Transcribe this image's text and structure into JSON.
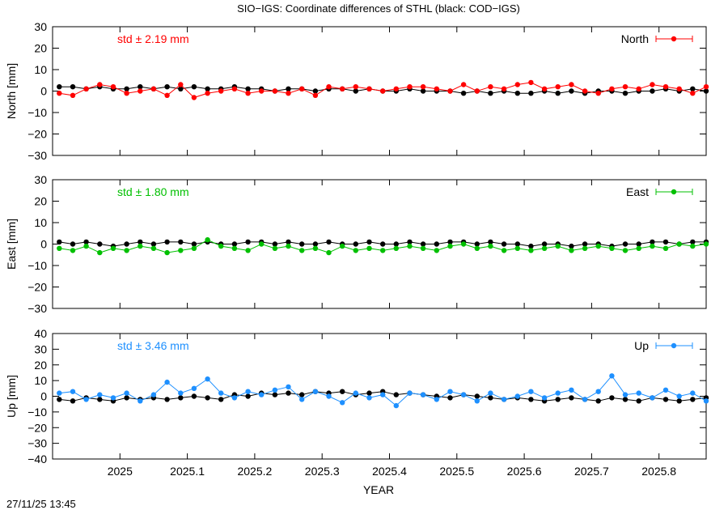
{
  "figure": {
    "title": "SIO−IGS: Coordinate differences of STHL (black: COD−IGS)",
    "xlabel": "YEAR",
    "timestamp": "27/11/25 13:45"
  },
  "chart_data": [
    {
      "type": "scatter",
      "title": "",
      "xlabel": "",
      "ylabel": "North [mm]",
      "xlim": [
        2024.9,
        2025.87
      ],
      "ylim": [
        -30,
        30
      ],
      "yticks": [
        30,
        20,
        10,
        0,
        -10,
        -20,
        -30
      ],
      "xticks": [
        2025,
        2025.1,
        2025.2,
        2025.3,
        2025.4,
        2025.5,
        2025.6,
        2025.7,
        2025.8
      ],
      "annotation": "std ± 2.19 mm",
      "legend_position": "top-right",
      "colors": {
        "primary": "#ff0000",
        "reference": "#000000"
      },
      "series": [
        {
          "name": "North",
          "role": "primary",
          "x": [
            2024.91,
            2024.93,
            2024.95,
            2024.97,
            2024.99,
            2025.01,
            2025.03,
            2025.05,
            2025.07,
            2025.09,
            2025.11,
            2025.13,
            2025.15,
            2025.17,
            2025.19,
            2025.21,
            2025.23,
            2025.25,
            2025.27,
            2025.29,
            2025.31,
            2025.33,
            2025.35,
            2025.37,
            2025.39,
            2025.41,
            2025.43,
            2025.45,
            2025.47,
            2025.49,
            2025.51,
            2025.53,
            2025.55,
            2025.57,
            2025.59,
            2025.61,
            2025.63,
            2025.65,
            2025.67,
            2025.69,
            2025.71,
            2025.73,
            2025.75,
            2025.77,
            2025.79,
            2025.81,
            2025.83,
            2025.85,
            2025.87
          ],
          "values": [
            -1,
            -2,
            1,
            3,
            2,
            -1,
            0,
            1,
            -2,
            3,
            -3,
            -1,
            0,
            1,
            -1,
            0,
            0,
            -1,
            1,
            -2,
            2,
            1,
            2,
            1,
            0,
            1,
            2,
            2,
            1,
            0,
            3,
            0,
            2,
            1,
            3,
            4,
            1,
            2,
            3,
            0,
            -1,
            1,
            2,
            1,
            3,
            2,
            1,
            -1,
            2
          ]
        },
        {
          "name": "",
          "role": "reference",
          "x": [
            2024.91,
            2024.93,
            2024.95,
            2024.97,
            2024.99,
            2025.01,
            2025.03,
            2025.05,
            2025.07,
            2025.09,
            2025.11,
            2025.13,
            2025.15,
            2025.17,
            2025.19,
            2025.21,
            2025.23,
            2025.25,
            2025.27,
            2025.29,
            2025.31,
            2025.33,
            2025.35,
            2025.37,
            2025.39,
            2025.41,
            2025.43,
            2025.45,
            2025.47,
            2025.49,
            2025.51,
            2025.53,
            2025.55,
            2025.57,
            2025.59,
            2025.61,
            2025.63,
            2025.65,
            2025.67,
            2025.69,
            2025.71,
            2025.73,
            2025.75,
            2025.77,
            2025.79,
            2025.81,
            2025.83,
            2025.85,
            2025.87
          ],
          "values": [
            2,
            2,
            1,
            2,
            1,
            1,
            2,
            1,
            2,
            1,
            2,
            1,
            1,
            2,
            1,
            1,
            0,
            1,
            1,
            0,
            1,
            1,
            0,
            1,
            0,
            0,
            1,
            0,
            0,
            0,
            -1,
            0,
            -1,
            0,
            -1,
            -1,
            0,
            -1,
            0,
            -1,
            0,
            0,
            -1,
            0,
            0,
            1,
            0,
            1,
            0
          ]
        }
      ]
    },
    {
      "type": "scatter",
      "title": "",
      "xlabel": "",
      "ylabel": "East [mm]",
      "xlim": [
        2024.9,
        2025.87
      ],
      "ylim": [
        -30,
        30
      ],
      "yticks": [
        30,
        20,
        10,
        0,
        -10,
        -20,
        -30
      ],
      "xticks": [
        2025,
        2025.1,
        2025.2,
        2025.3,
        2025.4,
        2025.5,
        2025.6,
        2025.7,
        2025.8
      ],
      "annotation": "std ± 1.80 mm",
      "legend_position": "top-right",
      "colors": {
        "primary": "#00c000",
        "reference": "#000000"
      },
      "series": [
        {
          "name": "East",
          "role": "primary",
          "x": [
            2024.91,
            2024.93,
            2024.95,
            2024.97,
            2024.99,
            2025.01,
            2025.03,
            2025.05,
            2025.07,
            2025.09,
            2025.11,
            2025.13,
            2025.15,
            2025.17,
            2025.19,
            2025.21,
            2025.23,
            2025.25,
            2025.27,
            2025.29,
            2025.31,
            2025.33,
            2025.35,
            2025.37,
            2025.39,
            2025.41,
            2025.43,
            2025.45,
            2025.47,
            2025.49,
            2025.51,
            2025.53,
            2025.55,
            2025.57,
            2025.59,
            2025.61,
            2025.63,
            2025.65,
            2025.67,
            2025.69,
            2025.71,
            2025.73,
            2025.75,
            2025.77,
            2025.79,
            2025.81,
            2025.83,
            2025.85,
            2025.87
          ],
          "values": [
            -2,
            -3,
            -1,
            -4,
            -2,
            -3,
            -1,
            -2,
            -4,
            -3,
            -2,
            2,
            -1,
            -2,
            -3,
            0,
            -2,
            -1,
            -3,
            -2,
            -4,
            -1,
            -3,
            -2,
            -3,
            -2,
            -1,
            -2,
            -3,
            -1,
            0,
            -2,
            -1,
            -3,
            -2,
            -3,
            -2,
            -1,
            -3,
            -2,
            -1,
            -2,
            -3,
            -2,
            -1,
            -2,
            0,
            -1,
            0
          ]
        },
        {
          "name": "",
          "role": "reference",
          "x": [
            2024.91,
            2024.93,
            2024.95,
            2024.97,
            2024.99,
            2025.01,
            2025.03,
            2025.05,
            2025.07,
            2025.09,
            2025.11,
            2025.13,
            2025.15,
            2025.17,
            2025.19,
            2025.21,
            2025.23,
            2025.25,
            2025.27,
            2025.29,
            2025.31,
            2025.33,
            2025.35,
            2025.37,
            2025.39,
            2025.41,
            2025.43,
            2025.45,
            2025.47,
            2025.49,
            2025.51,
            2025.53,
            2025.55,
            2025.57,
            2025.59,
            2025.61,
            2025.63,
            2025.65,
            2025.67,
            2025.69,
            2025.71,
            2025.73,
            2025.75,
            2025.77,
            2025.79,
            2025.81,
            2025.83,
            2025.85,
            2025.87
          ],
          "values": [
            1,
            0,
            1,
            0,
            -1,
            0,
            1,
            0,
            1,
            1,
            0,
            1,
            0,
            0,
            1,
            1,
            0,
            1,
            0,
            0,
            1,
            0,
            0,
            1,
            0,
            0,
            1,
            0,
            0,
            1,
            1,
            0,
            1,
            0,
            0,
            -1,
            0,
            0,
            -1,
            0,
            0,
            -1,
            0,
            0,
            1,
            1,
            0,
            1,
            1
          ]
        }
      ]
    },
    {
      "type": "scatter",
      "title": "",
      "xlabel": "",
      "ylabel": "Up [mm]",
      "xlim": [
        2024.9,
        2025.87
      ],
      "ylim": [
        -40,
        40
      ],
      "yticks": [
        40,
        30,
        20,
        10,
        0,
        -10,
        -20,
        -30,
        -40
      ],
      "xticks": [
        2025,
        2025.1,
        2025.2,
        2025.3,
        2025.4,
        2025.5,
        2025.6,
        2025.7,
        2025.8
      ],
      "annotation": "std ± 3.46 mm",
      "legend_position": "top-right",
      "colors": {
        "primary": "#1e90ff",
        "reference": "#000000"
      },
      "series": [
        {
          "name": "Up",
          "role": "primary",
          "x": [
            2024.91,
            2024.93,
            2024.95,
            2024.97,
            2024.99,
            2025.01,
            2025.03,
            2025.05,
            2025.07,
            2025.09,
            2025.11,
            2025.13,
            2025.15,
            2025.17,
            2025.19,
            2025.21,
            2025.23,
            2025.25,
            2025.27,
            2025.29,
            2025.31,
            2025.33,
            2025.35,
            2025.37,
            2025.39,
            2025.41,
            2025.43,
            2025.45,
            2025.47,
            2025.49,
            2025.51,
            2025.53,
            2025.55,
            2025.57,
            2025.59,
            2025.61,
            2025.63,
            2025.65,
            2025.67,
            2025.69,
            2025.71,
            2025.73,
            2025.75,
            2025.77,
            2025.79,
            2025.81,
            2025.83,
            2025.85,
            2025.87
          ],
          "values": [
            2,
            3,
            -2,
            1,
            -1,
            2,
            -3,
            1,
            9,
            2,
            5,
            11,
            2,
            -1,
            3,
            1,
            4,
            6,
            -2,
            3,
            0,
            -4,
            2,
            -1,
            1,
            -6,
            2,
            1,
            -2,
            3,
            1,
            -3,
            2,
            -2,
            0,
            3,
            -1,
            2,
            4,
            -2,
            3,
            13,
            1,
            2,
            -1,
            4,
            0,
            2,
            -3
          ]
        },
        {
          "name": "",
          "role": "reference",
          "x": [
            2024.91,
            2024.93,
            2024.95,
            2024.97,
            2024.99,
            2025.01,
            2025.03,
            2025.05,
            2025.07,
            2025.09,
            2025.11,
            2025.13,
            2025.15,
            2025.17,
            2025.19,
            2025.21,
            2025.23,
            2025.25,
            2025.27,
            2025.29,
            2025.31,
            2025.33,
            2025.35,
            2025.37,
            2025.39,
            2025.41,
            2025.43,
            2025.45,
            2025.47,
            2025.49,
            2025.51,
            2025.53,
            2025.55,
            2025.57,
            2025.59,
            2025.61,
            2025.63,
            2025.65,
            2025.67,
            2025.69,
            2025.71,
            2025.73,
            2025.75,
            2025.77,
            2025.79,
            2025.81,
            2025.83,
            2025.85,
            2025.87
          ],
          "values": [
            -2,
            -3,
            -1,
            -2,
            -3,
            -1,
            -2,
            -1,
            -2,
            -1,
            0,
            -1,
            -2,
            1,
            0,
            2,
            1,
            2,
            1,
            3,
            2,
            3,
            1,
            2,
            3,
            1,
            2,
            1,
            0,
            -1,
            1,
            0,
            -1,
            -2,
            -1,
            -2,
            -3,
            -2,
            -1,
            -2,
            -3,
            -1,
            -2,
            -3,
            -1,
            -2,
            -3,
            -2,
            -1
          ]
        }
      ]
    }
  ]
}
